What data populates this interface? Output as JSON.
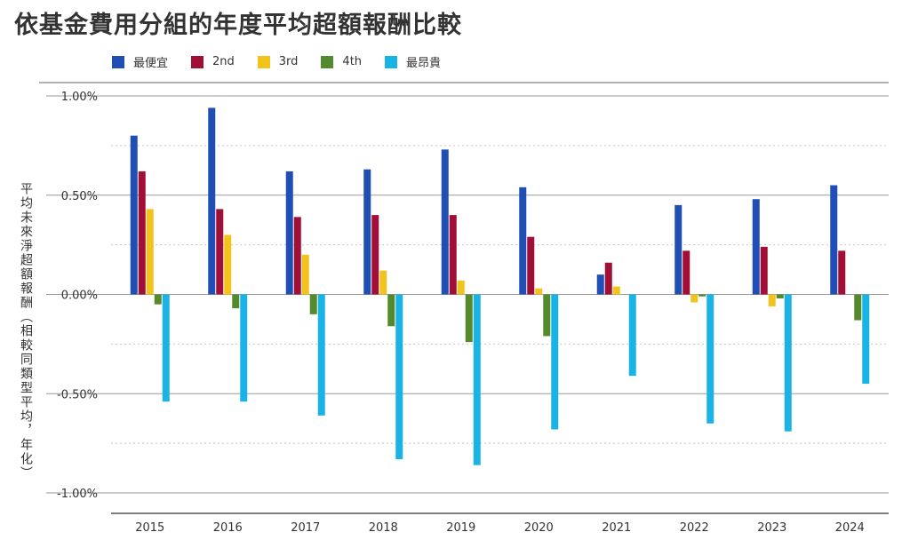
{
  "title": "依基金費用分組的年度平均超額報酬比較",
  "colors": {
    "series1": "#1f4fb5",
    "series2": "#a10e36",
    "series3": "#f2c31b",
    "series4": "#558a2c",
    "series5": "#1ab3e6",
    "grid": "#c8c8c8",
    "axis": "#999999"
  },
  "chart_data": {
    "type": "bar",
    "title": "依基金費用分組的年度平均超額報酬比較",
    "xlabel": "",
    "ylabel": "平均未來淨超額報酬（相較同類型平均，年化）",
    "ylim": [
      -1.0,
      1.0
    ],
    "y_ticks": [
      "1.00%",
      "0.50%",
      "0.00%",
      "-0.50%",
      "-1.00%"
    ],
    "y_tick_values": [
      1.0,
      0.5,
      0.0,
      -0.5,
      -1.0
    ],
    "grid": true,
    "legend_position": "top-left",
    "categories": [
      "2015",
      "2016",
      "2017",
      "2018",
      "2019",
      "2020",
      "2021",
      "2022",
      "2023",
      "2024"
    ],
    "series": [
      {
        "name": "最便宜",
        "values": [
          0.8,
          0.94,
          0.62,
          0.63,
          0.73,
          0.54,
          0.1,
          0.45,
          0.48,
          0.55
        ]
      },
      {
        "name": "2nd",
        "values": [
          0.62,
          0.43,
          0.39,
          0.4,
          0.4,
          0.29,
          0.16,
          0.22,
          0.24,
          0.22
        ]
      },
      {
        "name": "3rd",
        "values": [
          0.43,
          0.3,
          0.2,
          0.12,
          0.07,
          0.03,
          0.04,
          -0.04,
          -0.06,
          0.0
        ]
      },
      {
        "name": "4th",
        "values": [
          -0.05,
          -0.07,
          -0.1,
          -0.16,
          -0.24,
          -0.21,
          0.0,
          -0.01,
          -0.02,
          -0.13
        ]
      },
      {
        "name": "最昂貴",
        "values": [
          -0.54,
          -0.54,
          -0.61,
          -0.83,
          -0.86,
          -0.68,
          -0.41,
          -0.65,
          -0.69,
          -0.45
        ]
      }
    ]
  }
}
